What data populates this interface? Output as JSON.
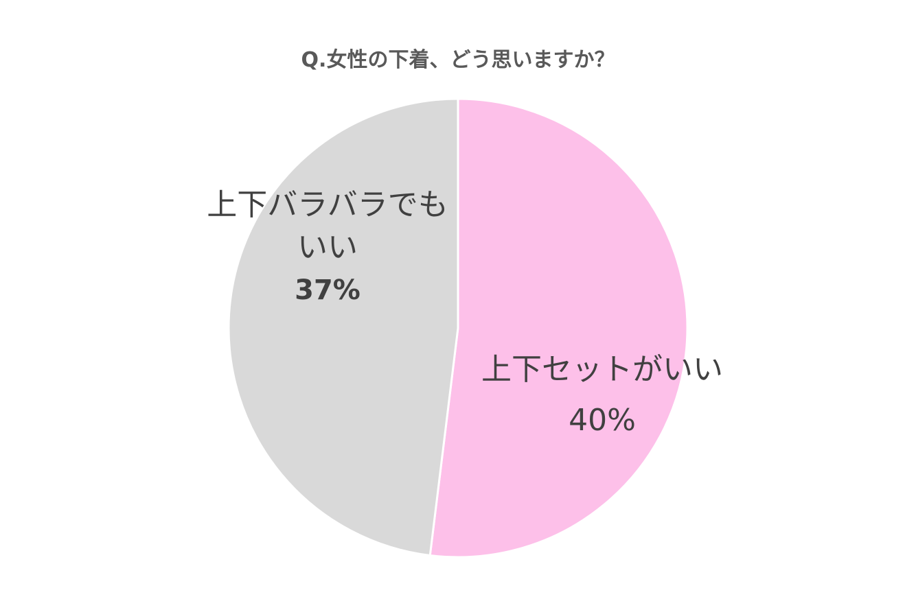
{
  "chart_data": {
    "type": "pie",
    "title": "Q.女性の下着、どう思いますか？",
    "categories": [
      "上下セットがいい",
      "上下バラバラでもいい"
    ],
    "values": [
      40,
      37
    ],
    "value_labels": [
      "40%",
      "37%"
    ],
    "colors": [
      "#fdc0e9",
      "#d9d9d9"
    ]
  }
}
